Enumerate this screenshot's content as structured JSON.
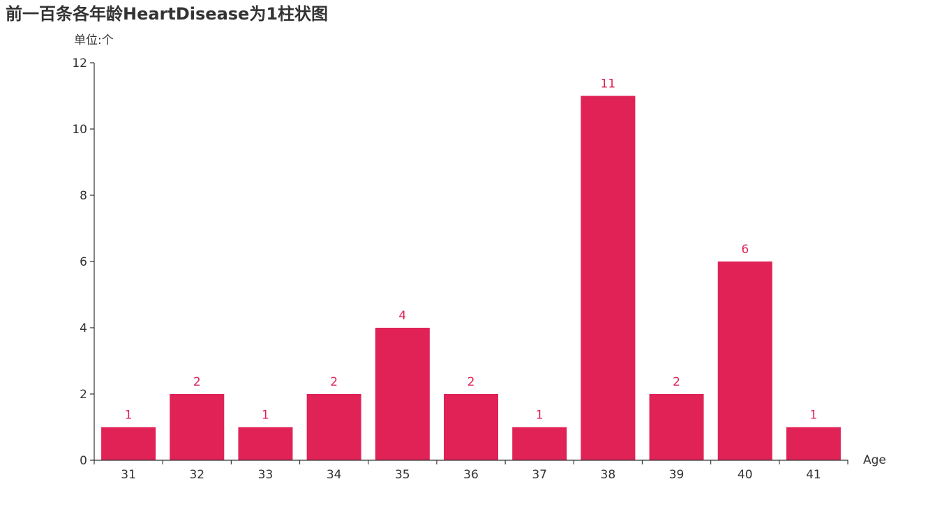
{
  "chart_data": {
    "type": "bar",
    "title": "前一百条各年龄HeartDisease为1柱状图",
    "ylabel": "单位:个",
    "xlabel": "Age",
    "categories": [
      "31",
      "32",
      "33",
      "34",
      "35",
      "36",
      "37",
      "38",
      "39",
      "40",
      "41"
    ],
    "values": [
      1,
      2,
      1,
      2,
      4,
      2,
      1,
      11,
      2,
      6,
      1
    ],
    "ylim": [
      0,
      12
    ],
    "yticks": [
      "0",
      "2",
      "4",
      "6",
      "8",
      "10",
      "12"
    ],
    "grid": false,
    "legend": "none",
    "colors": {
      "bar": "#e02256",
      "label": "#e02256",
      "axis": "#333333",
      "text": "#333333"
    }
  }
}
